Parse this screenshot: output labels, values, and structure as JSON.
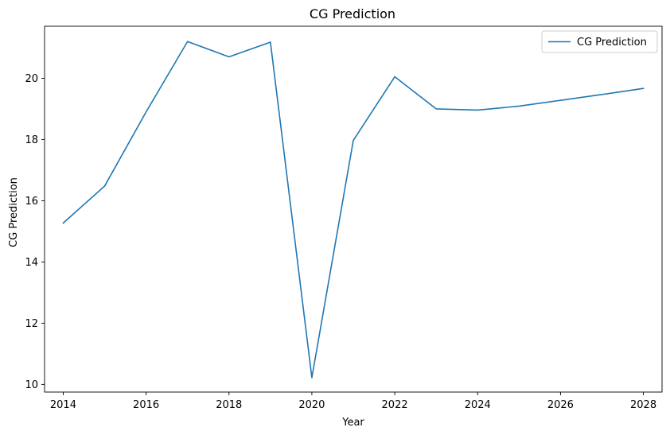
{
  "chart_data": {
    "type": "line",
    "title": "CG Prediction",
    "xlabel": "Year",
    "ylabel": "CG Prediction",
    "xlim": [
      2013.55,
      2028.45
    ],
    "ylim": [
      9.75,
      21.7
    ],
    "x_ticks": [
      2014,
      2016,
      2018,
      2020,
      2022,
      2024,
      2026,
      2028
    ],
    "y_ticks": [
      10,
      12,
      14,
      16,
      18,
      20
    ],
    "grid": false,
    "legend_position": "top-right",
    "series": [
      {
        "name": "CG Prediction",
        "color": "#1f77b4",
        "x": [
          2014,
          2015,
          2016,
          2017,
          2018,
          2019,
          2020,
          2021,
          2022,
          2023,
          2024,
          2025,
          2026,
          2027,
          2028
        ],
        "y": [
          15.27,
          16.48,
          18.9,
          21.2,
          20.7,
          21.18,
          10.22,
          17.97,
          20.05,
          19.0,
          18.96,
          19.09,
          19.28,
          19.47,
          19.67
        ]
      }
    ]
  }
}
